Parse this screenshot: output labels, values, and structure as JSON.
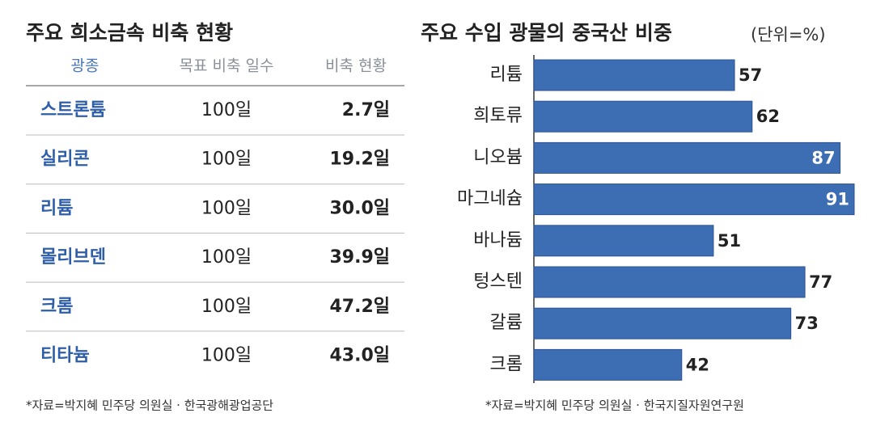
{
  "table": {
    "title": "주요 희소금속 비축 현황",
    "header": [
      "광종",
      "목표 비축 일수",
      "비축 현황"
    ],
    "rows": [
      [
        "스트론튬",
        "100일",
        "2.7일"
      ],
      [
        "실리콘",
        "100일",
        "19.2일"
      ],
      [
        "리튬",
        "100일",
        "30.0일"
      ],
      [
        "몰리브덴",
        "100일",
        "39.9일"
      ],
      [
        "크롬",
        "100일",
        "47.2일"
      ],
      [
        "티타늄",
        "100일",
        "43.0일"
      ]
    ],
    "source": "*자료=박지혜 민주당 의원실 · 한국광해광업공단"
  },
  "chart_data": {
    "type": "hbar",
    "title": "주요 수입 광물의 중국산 비중",
    "subtitle": "(단위=%)",
    "categories": [
      "리튬",
      "희토류",
      "니오븀",
      "마그네슘",
      "바나듐",
      "텅스텐",
      "갈륨",
      "크롬"
    ],
    "values": [
      57,
      62,
      87,
      91,
      51,
      77,
      73,
      42
    ],
    "color": "#3d6db3",
    "source": "*자료=박지혜 민주당 의원실 · 한국지질자원연구원"
  }
}
